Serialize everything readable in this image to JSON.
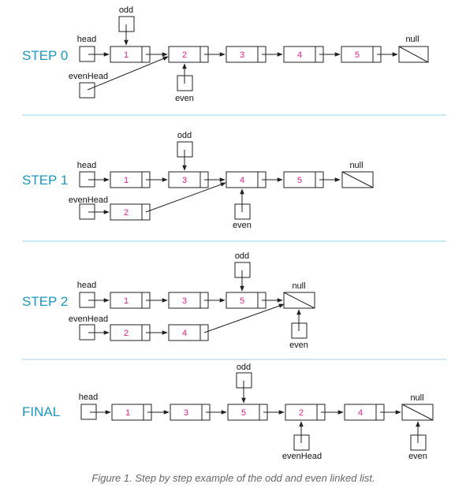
{
  "colors": {
    "step_label": "#1a98c0",
    "node_value": "#e0208a",
    "separator": "#9fd3e6",
    "stroke": "#222222",
    "caption": "#666666"
  },
  "steps": [
    {
      "label": "STEP 0",
      "chain": [
        {
          "type": "ptr",
          "name": "head"
        },
        {
          "type": "node",
          "value": "1",
          "ptr": "odd"
        },
        {
          "type": "node",
          "value": "2",
          "ptr_below": "even"
        },
        {
          "type": "node",
          "value": "3"
        },
        {
          "type": "node",
          "value": "4"
        },
        {
          "type": "node",
          "value": "5"
        },
        {
          "type": "null",
          "name": "null"
        }
      ],
      "even_head": {
        "name": "evenHead",
        "points_to": "2"
      }
    },
    {
      "label": "STEP 1",
      "chain": [
        {
          "type": "ptr",
          "name": "head"
        },
        {
          "type": "node",
          "value": "1"
        },
        {
          "type": "node",
          "value": "3",
          "ptr": "odd"
        },
        {
          "type": "node",
          "value": "4",
          "ptr_below": "even"
        },
        {
          "type": "node",
          "value": "5"
        },
        {
          "type": "null",
          "name": "null"
        }
      ],
      "even_chain": [
        {
          "type": "ptr",
          "name": "evenHead"
        },
        {
          "type": "node",
          "value": "2",
          "links_to": "4"
        }
      ]
    },
    {
      "label": "STEP 2",
      "chain": [
        {
          "type": "ptr",
          "name": "head"
        },
        {
          "type": "node",
          "value": "1"
        },
        {
          "type": "node",
          "value": "3"
        },
        {
          "type": "node",
          "value": "5",
          "ptr": "odd"
        },
        {
          "type": "null",
          "name": "null",
          "ptr_below": "even"
        }
      ],
      "even_chain": [
        {
          "type": "ptr",
          "name": "evenHead"
        },
        {
          "type": "node",
          "value": "2"
        },
        {
          "type": "node",
          "value": "4",
          "links_to": "null"
        }
      ]
    },
    {
      "label": "FINAL",
      "chain": [
        {
          "type": "ptr",
          "name": "head"
        },
        {
          "type": "node",
          "value": "1"
        },
        {
          "type": "node",
          "value": "3"
        },
        {
          "type": "node",
          "value": "5",
          "ptr": "odd"
        },
        {
          "type": "node",
          "value": "2",
          "ptr_below": "evenHead"
        },
        {
          "type": "node",
          "value": "4"
        },
        {
          "type": "null",
          "name": "null",
          "ptr_below": "even"
        }
      ]
    }
  ],
  "caption": "Figure 1. Step by step example of the odd and even linked list."
}
